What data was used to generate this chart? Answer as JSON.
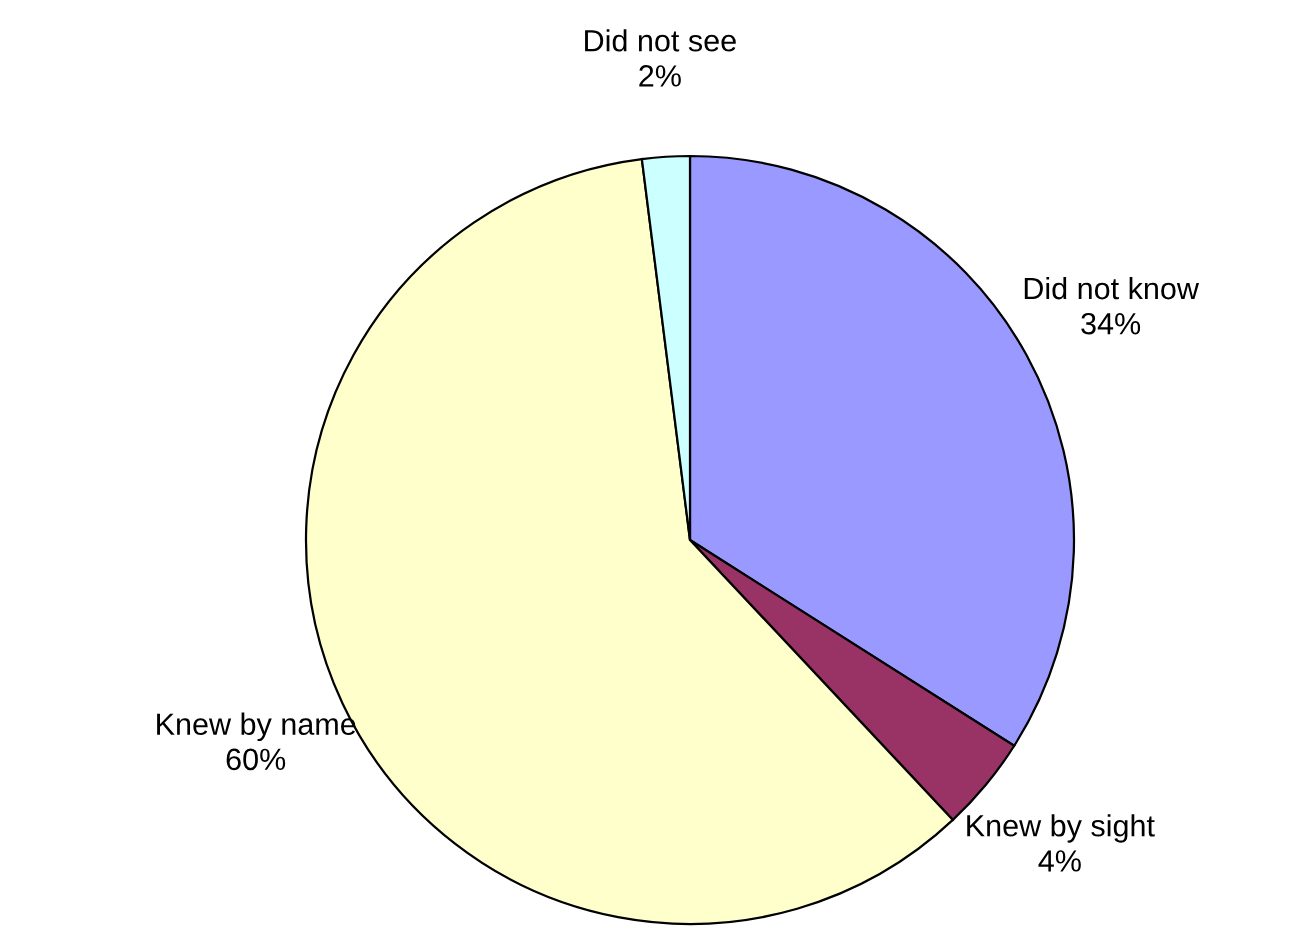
{
  "chart_data": {
    "type": "pie",
    "categories": [
      "Did not know",
      "Knew by sight",
      "Knew by name",
      "Did not see"
    ],
    "values": [
      34,
      4,
      60,
      2
    ],
    "value_labels": [
      "34%",
      "4%",
      "60%",
      "2%"
    ],
    "colors": [
      "#9999ff",
      "#993366",
      "#ffffcc",
      "#ccffff"
    ],
    "legend": false
  }
}
